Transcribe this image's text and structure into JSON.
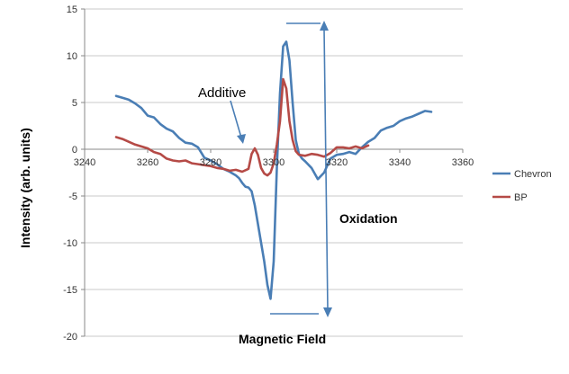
{
  "chart_data": {
    "type": "line",
    "title": "",
    "xlabel": "Magnetic Field",
    "ylabel": "Intensity (arb. units)",
    "xlim": [
      3240,
      3360
    ],
    "ylim": [
      -20,
      15
    ],
    "x_ticks": [
      3240,
      3260,
      3280,
      3300,
      3320,
      3340,
      3360
    ],
    "y_ticks": [
      -20,
      -15,
      -10,
      -5,
      0,
      5,
      10,
      15
    ],
    "x_tick_labels": [
      "3240",
      "3260",
      "3280",
      "3300",
      "3320",
      "3340",
      "3360"
    ],
    "y_tick_labels": [
      "-20",
      "-15",
      "-10",
      "-5",
      "0",
      "5",
      "10",
      "15"
    ],
    "grid": "horizontal",
    "legend_position": "right",
    "annotations": {
      "additive": "Additive",
      "oxidation": "Oxidation"
    },
    "series": [
      {
        "name": "Chevron",
        "color": "#4a7eb5",
        "points": [
          [
            3250,
            5.7
          ],
          [
            3252,
            5.5
          ],
          [
            3254,
            5.3
          ],
          [
            3256,
            4.9
          ],
          [
            3258,
            4.4
          ],
          [
            3260,
            3.6
          ],
          [
            3262,
            3.4
          ],
          [
            3264,
            2.7
          ],
          [
            3266,
            2.2
          ],
          [
            3268,
            1.9
          ],
          [
            3270,
            1.2
          ],
          [
            3272,
            0.7
          ],
          [
            3274,
            0.6
          ],
          [
            3276,
            0.2
          ],
          [
            3278,
            -0.9
          ],
          [
            3280,
            -1.2
          ],
          [
            3282,
            -1.6
          ],
          [
            3284,
            -2.1
          ],
          [
            3286,
            -2.4
          ],
          [
            3288,
            -2.8
          ],
          [
            3289,
            -3.1
          ],
          [
            3290,
            -3.6
          ],
          [
            3291,
            -4.0
          ],
          [
            3292,
            -4.1
          ],
          [
            3293,
            -4.5
          ],
          [
            3294,
            -6.0
          ],
          [
            3295,
            -8.0
          ],
          [
            3296,
            -10.0
          ],
          [
            3297,
            -12.0
          ],
          [
            3298,
            -14.5
          ],
          [
            3299,
            -16.0
          ],
          [
            3300,
            -12.0
          ],
          [
            3301,
            -2.0
          ],
          [
            3302,
            6.0
          ],
          [
            3303,
            11.0
          ],
          [
            3304,
            11.5
          ],
          [
            3305,
            9.5
          ],
          [
            3306,
            5.0
          ],
          [
            3307,
            1.0
          ],
          [
            3308,
            -0.5
          ],
          [
            3309,
            -1.0
          ],
          [
            3310,
            -1.3
          ],
          [
            3312,
            -2.0
          ],
          [
            3314,
            -3.2
          ],
          [
            3316,
            -2.5
          ],
          [
            3318,
            -1.0
          ],
          [
            3320,
            -0.6
          ],
          [
            3322,
            -0.5
          ],
          [
            3324,
            -0.3
          ],
          [
            3326,
            -0.5
          ],
          [
            3328,
            0.2
          ],
          [
            3330,
            0.8
          ],
          [
            3332,
            1.2
          ],
          [
            3334,
            2.0
          ],
          [
            3336,
            2.3
          ],
          [
            3338,
            2.5
          ],
          [
            3340,
            3.0
          ],
          [
            3342,
            3.3
          ],
          [
            3344,
            3.5
          ],
          [
            3346,
            3.8
          ],
          [
            3348,
            4.1
          ],
          [
            3350,
            4.0
          ]
        ]
      },
      {
        "name": "BP",
        "color": "#b54a46",
        "points": [
          [
            3250,
            1.3
          ],
          [
            3252,
            1.1
          ],
          [
            3254,
            0.8
          ],
          [
            3256,
            0.5
          ],
          [
            3258,
            0.3
          ],
          [
            3260,
            0.1
          ],
          [
            3262,
            -0.3
          ],
          [
            3264,
            -0.5
          ],
          [
            3266,
            -1.0
          ],
          [
            3268,
            -1.2
          ],
          [
            3270,
            -1.3
          ],
          [
            3272,
            -1.2
          ],
          [
            3274,
            -1.5
          ],
          [
            3276,
            -1.6
          ],
          [
            3278,
            -1.7
          ],
          [
            3280,
            -1.8
          ],
          [
            3282,
            -2.0
          ],
          [
            3284,
            -2.1
          ],
          [
            3286,
            -2.3
          ],
          [
            3288,
            -2.2
          ],
          [
            3290,
            -2.4
          ],
          [
            3292,
            -2.1
          ],
          [
            3293,
            -0.5
          ],
          [
            3294,
            0.1
          ],
          [
            3295,
            -0.6
          ],
          [
            3296,
            -2.0
          ],
          [
            3297,
            -2.6
          ],
          [
            3298,
            -2.8
          ],
          [
            3299,
            -2.5
          ],
          [
            3300,
            -1.5
          ],
          [
            3301,
            0.5
          ],
          [
            3302,
            3.0
          ],
          [
            3303,
            7.5
          ],
          [
            3304,
            6.5
          ],
          [
            3305,
            3.0
          ],
          [
            3306,
            1.0
          ],
          [
            3307,
            -0.2
          ],
          [
            3308,
            -0.6
          ],
          [
            3310,
            -0.7
          ],
          [
            3312,
            -0.5
          ],
          [
            3314,
            -0.6
          ],
          [
            3316,
            -0.8
          ],
          [
            3318,
            -0.4
          ],
          [
            3320,
            0.2
          ],
          [
            3322,
            0.2
          ],
          [
            3324,
            0.1
          ],
          [
            3326,
            0.3
          ],
          [
            3328,
            0.1
          ],
          [
            3330,
            0.4
          ]
        ]
      }
    ]
  }
}
